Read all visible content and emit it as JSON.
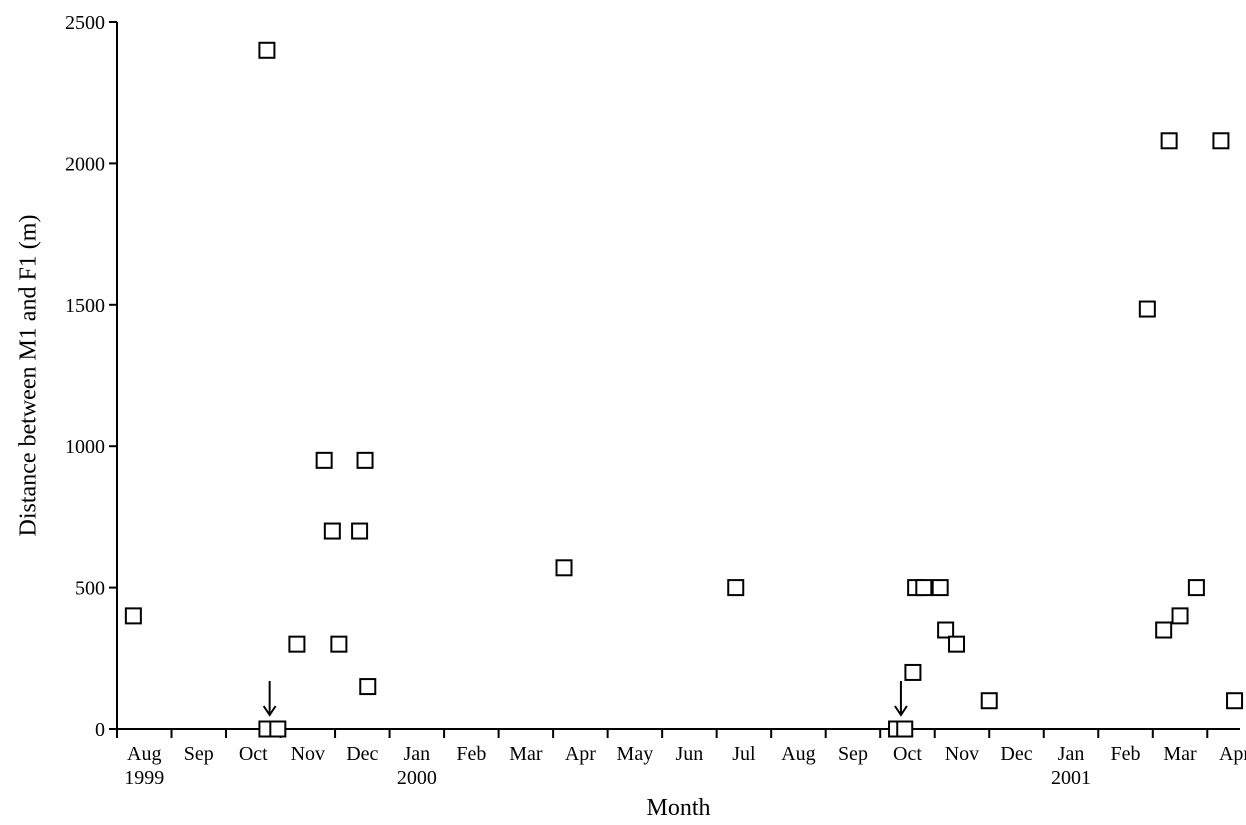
{
  "chart_data": {
    "type": "scatter",
    "title": "",
    "xlabel": "Month",
    "ylabel": "Distance between M1 and F1 (m)",
    "ylim": [
      0,
      2500
    ],
    "yticks": [
      0,
      500,
      1000,
      1500,
      2000,
      2500
    ],
    "xlim": [
      0,
      20.6
    ],
    "grid": false,
    "legend": "none",
    "month_labels": [
      "Aug",
      "Sep",
      "Oct",
      "Nov",
      "Dec",
      "Jan",
      "Feb",
      "Mar",
      "Apr",
      "May",
      "Jun",
      "Jul",
      "Aug",
      "Sep",
      "Oct",
      "Nov",
      "Dec",
      "Jan",
      "Feb",
      "Mar",
      "Apr"
    ],
    "year_labels": [
      {
        "text": "1999",
        "month_index": 0
      },
      {
        "text": "2000",
        "month_index": 5
      },
      {
        "text": "2001",
        "month_index": 17
      }
    ],
    "series": [
      {
        "points": [
          {
            "x": 0.3,
            "y": 400
          },
          {
            "x": 2.75,
            "y": 2400
          },
          {
            "x": 2.75,
            "y": 0
          },
          {
            "x": 2.95,
            "y": 0
          },
          {
            "x": 3.3,
            "y": 300
          },
          {
            "x": 3.8,
            "y": 950
          },
          {
            "x": 3.95,
            "y": 700
          },
          {
            "x": 4.07,
            "y": 300
          },
          {
            "x": 4.45,
            "y": 700
          },
          {
            "x": 4.55,
            "y": 950
          },
          {
            "x": 4.6,
            "y": 150
          },
          {
            "x": 8.2,
            "y": 570
          },
          {
            "x": 11.35,
            "y": 500
          },
          {
            "x": 14.3,
            "y": 0
          },
          {
            "x": 14.45,
            "y": 0
          },
          {
            "x": 14.6,
            "y": 200
          },
          {
            "x": 14.65,
            "y": 500
          },
          {
            "x": 14.8,
            "y": 500
          },
          {
            "x": 15.1,
            "y": 500
          },
          {
            "x": 15.2,
            "y": 350
          },
          {
            "x": 15.4,
            "y": 300
          },
          {
            "x": 16.0,
            "y": 100
          },
          {
            "x": 18.9,
            "y": 1485
          },
          {
            "x": 19.2,
            "y": 350
          },
          {
            "x": 19.3,
            "y": 2080
          },
          {
            "x": 19.5,
            "y": 400
          },
          {
            "x": 19.8,
            "y": 500
          },
          {
            "x": 20.25,
            "y": 2080
          },
          {
            "x": 20.5,
            "y": 100
          }
        ]
      }
    ],
    "annotations": [
      {
        "type": "arrow-down",
        "x": 2.8,
        "y": 0
      },
      {
        "type": "arrow-down",
        "x": 14.38,
        "y": 0
      }
    ]
  }
}
